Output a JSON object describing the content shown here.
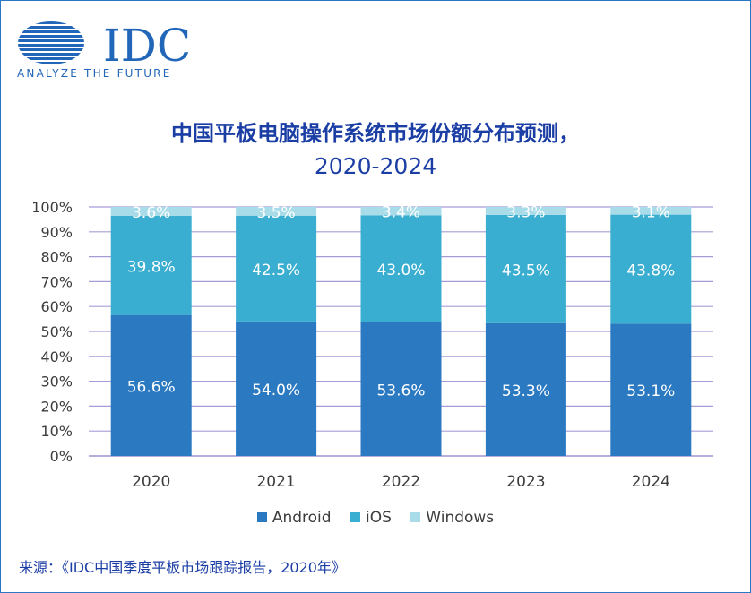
{
  "logo": {
    "text": "IDC",
    "tagline": "ANALYZE THE FUTURE"
  },
  "title_line1": "中国平板电脑操作系统市场份额分布预测，",
  "title_line2": "2020-2024",
  "chart_data": {
    "type": "bar",
    "stacked": true,
    "title": "中国平板电脑操作系统市场份额分布预测，2020-2024",
    "categories": [
      "2020",
      "2021",
      "2022",
      "2023",
      "2024"
    ],
    "series": [
      {
        "name": "Android",
        "values": [
          56.6,
          54.0,
          53.6,
          53.3,
          53.1
        ],
        "labels": [
          "56.6%",
          "54.0%",
          "53.6%",
          "53.3%",
          "53.1%"
        ],
        "color": "#2a79c1"
      },
      {
        "name": "iOS",
        "values": [
          39.8,
          42.5,
          43.0,
          43.5,
          43.8
        ],
        "labels": [
          "39.8%",
          "42.5%",
          "43.0%",
          "43.5%",
          "43.8%"
        ],
        "color": "#3aaed0"
      },
      {
        "name": "Windows",
        "values": [
          3.6,
          3.5,
          3.4,
          3.3,
          3.1
        ],
        "labels": [
          "3.6%",
          "3.5%",
          "3.4%",
          "3.3%",
          "3.1%"
        ],
        "color": "#a9dce9"
      }
    ],
    "y_ticks": [
      "0%",
      "10%",
      "20%",
      "30%",
      "40%",
      "50%",
      "60%",
      "70%",
      "80%",
      "90%",
      "100%"
    ],
    "ylim": [
      0,
      100
    ],
    "grid": true,
    "legend_position": "bottom"
  },
  "source": "来源：《IDC中国季度平板市场跟踪报告，2020年》",
  "colors": {
    "title": "#1b3ea5",
    "grid": "#a79bd6",
    "axis": "#a79bd6"
  }
}
